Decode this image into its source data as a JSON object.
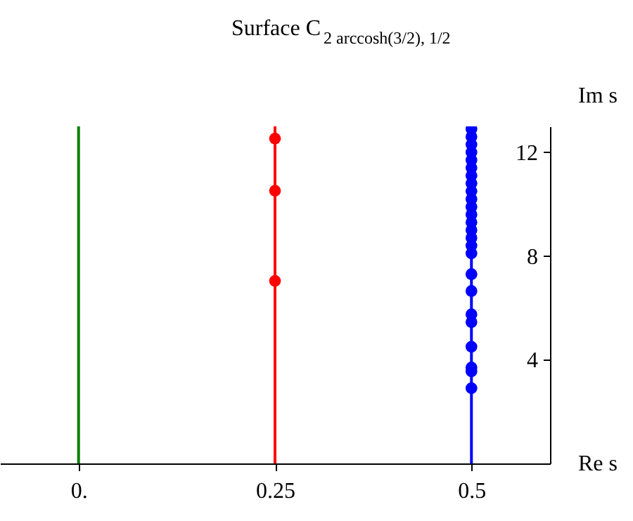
{
  "chart_data": {
    "type": "line",
    "title": "Surface C$_{2 arccosh(3/2), 1/2}$",
    "xlabel": "Re s",
    "ylabel": "Im s",
    "xlim": [
      -0.1,
      0.6
    ],
    "xticks": [
      {
        "value": 0,
        "label": "0."
      },
      0.25,
      0.5
    ],
    "ylim": [
      0,
      13
    ],
    "yticks": [
      4,
      8,
      12
    ],
    "grid": false,
    "marker": "circle",
    "series": [
      {
        "color": "#008000",
        "marker": "none",
        "x": [
          0,
          0
        ],
        "values": [
          0,
          13
        ]
      },
      {
        "color": "#ff0000",
        "marker": "none",
        "x": [
          0.25,
          0.25
        ],
        "values": [
          0,
          13
        ]
      },
      {
        "color": "#0000ff",
        "marker": "none",
        "x": [
          0.5,
          0.5
        ],
        "values": [
          0,
          13
        ]
      },
      {
        "type": "scatter",
        "color": "#ff0000",
        "x": [
          0.25,
          0.25,
          0.25
        ],
        "values": [
          7.04,
          10.52,
          12.53
        ]
      },
      {
        "type": "scatter",
        "color": "#0000ff",
        "x": [
          0.5,
          0.5,
          0.5,
          0.5,
          0.5,
          0.5,
          0.5,
          0.5,
          0.5,
          0.5,
          0.5,
          0.5,
          0.5,
          0.5,
          0.5,
          0.5,
          0.5,
          0.5,
          0.5,
          0.5,
          0.5,
          0.5,
          0.5,
          0.5,
          0.5
        ],
        "values": [
          2.9,
          3.55,
          3.7,
          4.5,
          5.45,
          5.75,
          6.65,
          7.3,
          8.1,
          8.4,
          8.7,
          9.0,
          9.3,
          9.6,
          9.9,
          10.2,
          10.5,
          10.8,
          11.1,
          11.4,
          11.7,
          12.0,
          12.3,
          12.6,
          12.9
        ]
      }
    ]
  }
}
